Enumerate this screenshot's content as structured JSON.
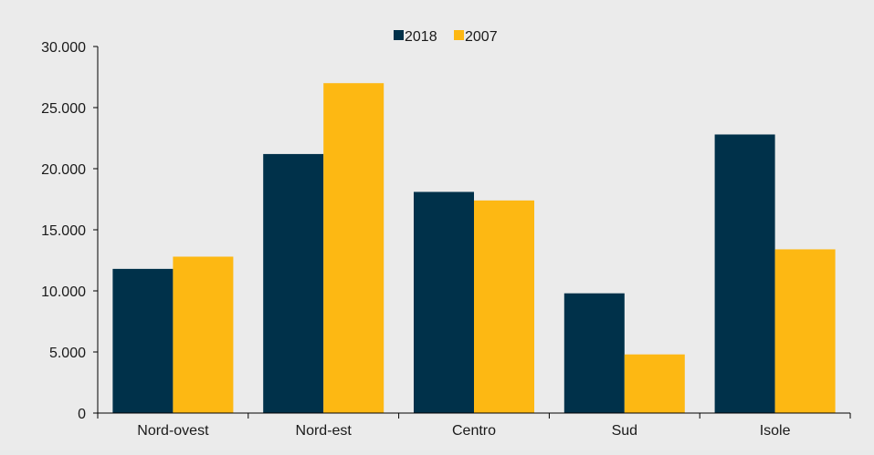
{
  "chart_data": {
    "type": "bar",
    "categories": [
      "Nord-ovest",
      "Nord-est",
      "Centro",
      "Sud",
      "Isole"
    ],
    "series": [
      {
        "name": "2018",
        "color": "#00314a",
        "values": [
          11800,
          21200,
          18100,
          9800,
          22800
        ]
      },
      {
        "name": "2007",
        "color": "#fdb813",
        "values": [
          12800,
          27000,
          17400,
          4800,
          13400
        ]
      }
    ],
    "y_ticks": [
      "0",
      "5.000",
      "10.000",
      "15.000",
      "20.000",
      "25.000",
      "30.000"
    ],
    "y_tick_values": [
      0,
      5000,
      10000,
      15000,
      20000,
      25000,
      30000
    ],
    "ylim": [
      0,
      30000
    ],
    "legend_position": "top-center",
    "grid": false,
    "background_color": "#ebebeb",
    "axis_color": "#000000"
  }
}
